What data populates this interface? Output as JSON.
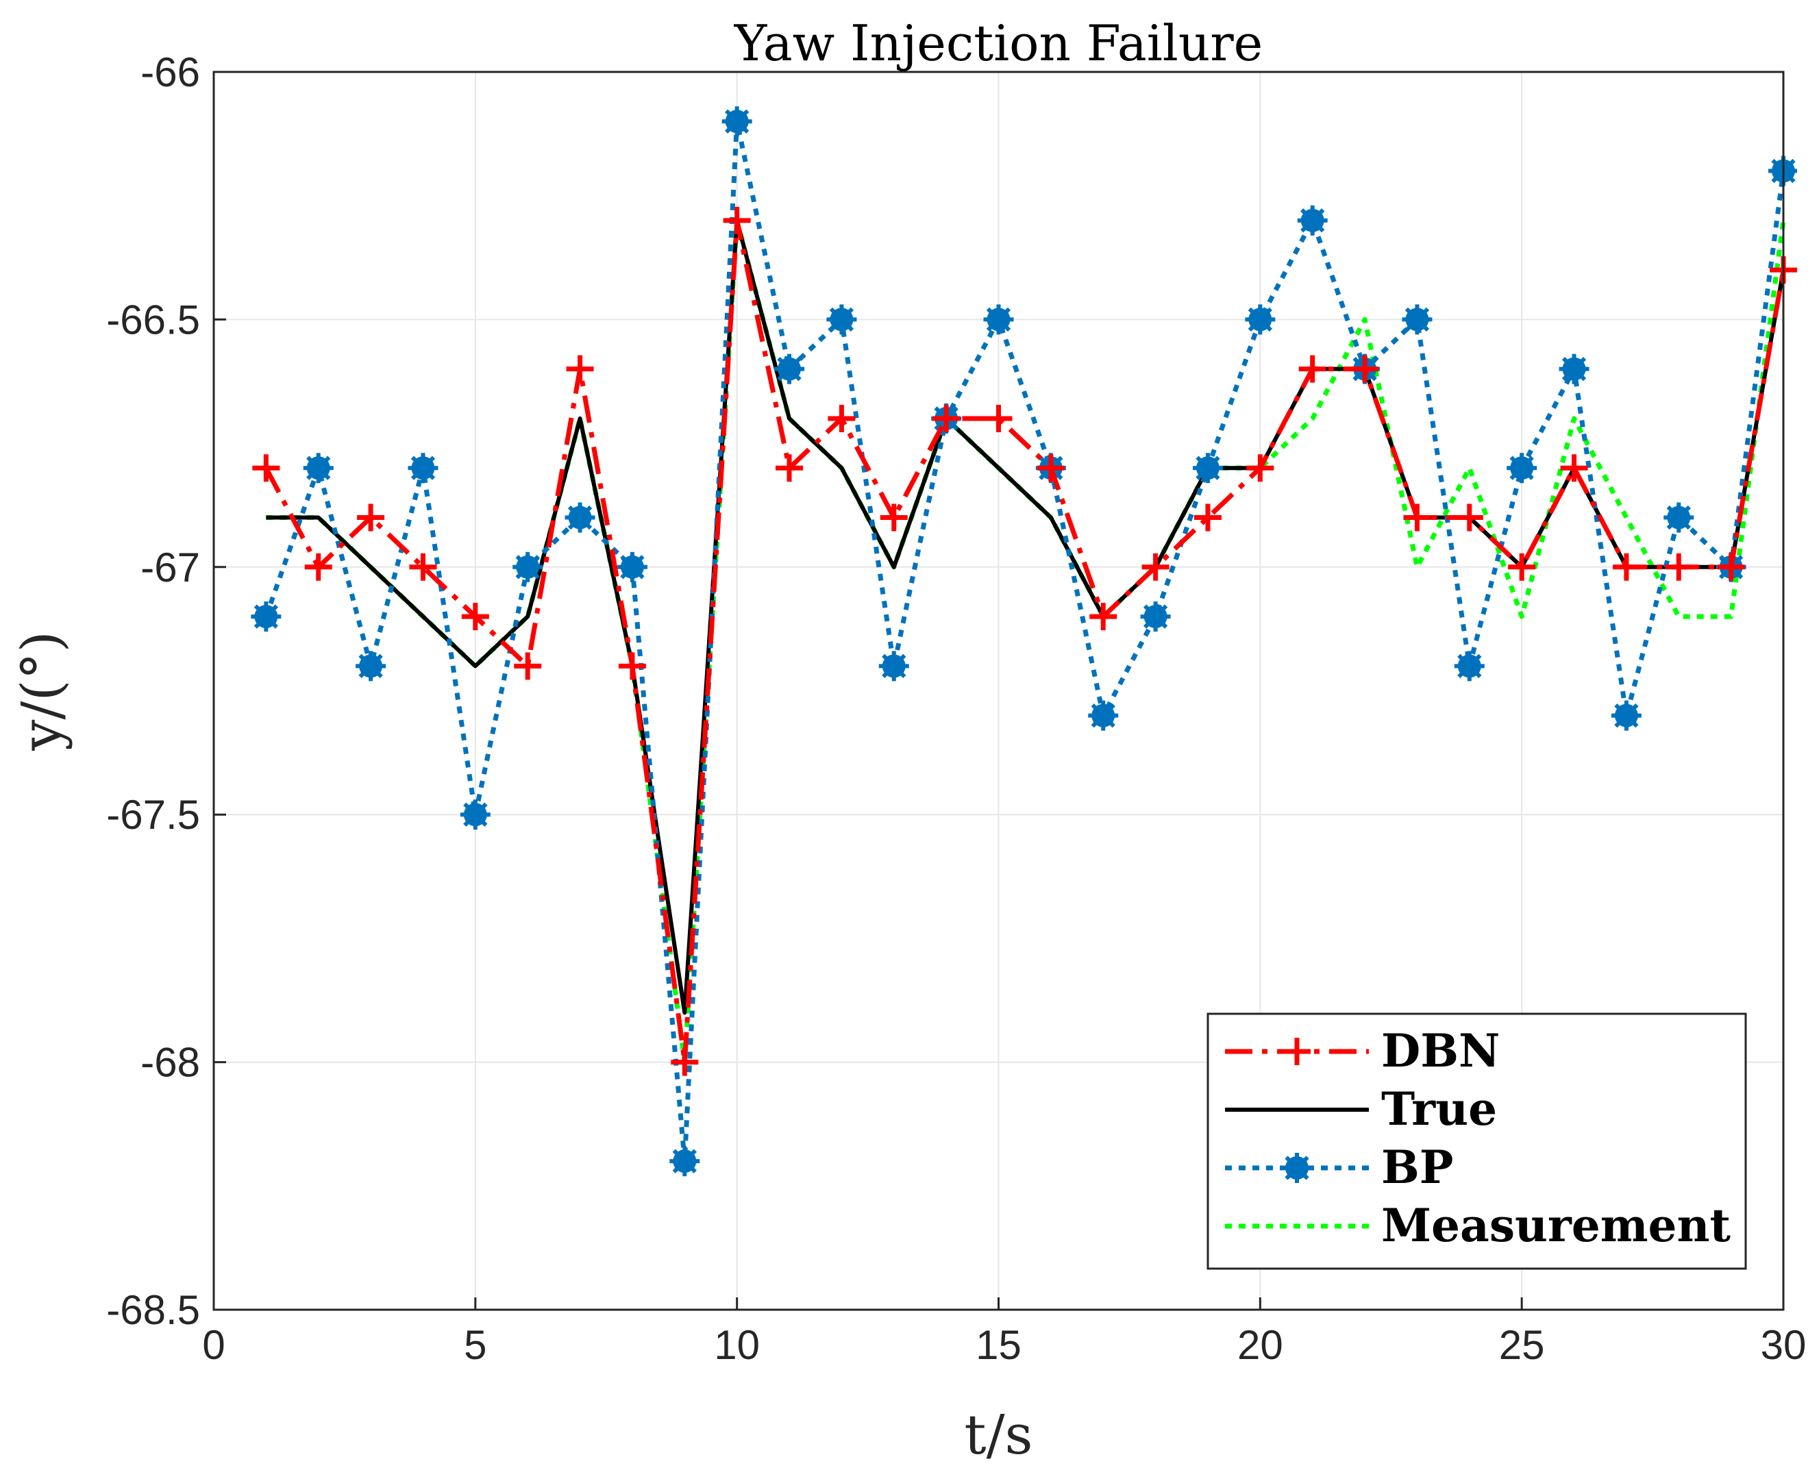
{
  "chart_data": {
    "type": "line",
    "title": "Yaw Injection Failure",
    "xlabel": "t/s",
    "ylabel": "y/(°)",
    "xlim": [
      0,
      30
    ],
    "ylim": [
      -68.5,
      -66
    ],
    "xticks": [
      "0",
      "5",
      "10",
      "15",
      "20",
      "25",
      "30"
    ],
    "yticks": [
      "-66",
      "-66.5",
      "-67",
      "-67.5",
      "-68",
      "-68.5"
    ],
    "grid": true,
    "legend_position": "bottom-right",
    "x": [
      1,
      2,
      3,
      4,
      5,
      6,
      7,
      8,
      9,
      10,
      11,
      12,
      13,
      14,
      15,
      16,
      17,
      18,
      19,
      20,
      21,
      22,
      23,
      24,
      25,
      26,
      27,
      28,
      29,
      30
    ],
    "series": [
      {
        "name": "DBN",
        "color": "#ff0000",
        "style": "dash-dot",
        "marker": "plus",
        "values": [
          -66.8,
          -67.0,
          -66.9,
          -67.0,
          -67.1,
          -67.2,
          -66.6,
          -67.2,
          -68.0,
          -66.3,
          -66.8,
          -66.7,
          -66.9,
          -66.7,
          -66.7,
          -66.8,
          -67.1,
          -67.0,
          -66.9,
          -66.8,
          -66.6,
          -66.6,
          -66.9,
          -66.9,
          -67.0,
          -66.8,
          -67.0,
          -67.0,
          -67.0,
          -66.4
        ]
      },
      {
        "name": "True",
        "color": "#000000",
        "style": "solid",
        "marker": "none",
        "values": [
          -66.9,
          -66.9,
          -67.0,
          -67.1,
          -67.2,
          -67.1,
          -66.7,
          -67.2,
          -67.9,
          -66.3,
          -66.7,
          -66.8,
          -67.0,
          -66.7,
          -66.8,
          -66.9,
          -67.1,
          -67.0,
          -66.8,
          -66.8,
          -66.6,
          -66.6,
          -66.9,
          -66.9,
          -67.0,
          -66.8,
          -67.0,
          -67.0,
          -67.0,
          -66.4
        ]
      },
      {
        "name": "BP",
        "color": "#0072bd",
        "style": "dotted",
        "marker": "asterisk-circle",
        "values": [
          -67.1,
          -66.8,
          -67.2,
          -66.8,
          -67.5,
          -67.0,
          -66.9,
          -67.0,
          -68.2,
          -66.1,
          -66.6,
          -66.5,
          -67.2,
          -66.7,
          -66.5,
          -66.8,
          -67.3,
          -67.1,
          -66.8,
          -66.5,
          -66.3,
          -66.6,
          -66.5,
          -67.2,
          -66.8,
          -66.6,
          -67.3,
          -66.9,
          -67.0,
          -66.2
        ]
      },
      {
        "name": "Measurement",
        "color": "#00ff00",
        "style": "dotted",
        "marker": "none",
        "values": [
          -66.9,
          -66.9,
          -67.0,
          -67.1,
          -67.2,
          -67.1,
          -66.7,
          -67.2,
          -68.0,
          -66.3,
          -66.7,
          -66.8,
          -67.0,
          -66.7,
          -66.8,
          -66.9,
          -67.1,
          -67.0,
          -66.8,
          -66.8,
          -66.7,
          -66.5,
          -67.0,
          -66.8,
          -67.1,
          -66.7,
          -66.9,
          -67.1,
          -67.1,
          -66.3
        ]
      }
    ]
  }
}
